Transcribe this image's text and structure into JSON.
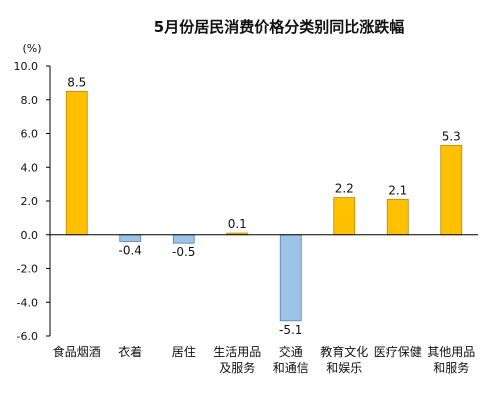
{
  "chart_data": {
    "type": "bar",
    "title": "5月份居民消费价格分类别同比涨跌幅",
    "unit": "(%)",
    "categories": [
      [
        "食品烟酒"
      ],
      [
        "衣着"
      ],
      [
        "居住"
      ],
      [
        "生活用品",
        "及服务"
      ],
      [
        "交通",
        "和通信"
      ],
      [
        "教育文化",
        "和娱乐"
      ],
      [
        "医疗保健"
      ],
      [
        "其他用品",
        "和服务"
      ]
    ],
    "values": [
      8.5,
      -0.4,
      -0.5,
      0.1,
      -5.1,
      2.2,
      2.1,
      5.3
    ],
    "value_labels": [
      "8.5",
      "-0.4",
      "-0.5",
      "0.1",
      "-5.1",
      "2.2",
      "2.1",
      "5.3"
    ],
    "yticks": [
      "10.0",
      "8.0",
      "6.0",
      "4.0",
      "2.0",
      "0.0",
      "-2.0",
      "-4.0",
      "-6.0"
    ],
    "ylim": [
      -6,
      10
    ],
    "grid": false,
    "colors": {
      "positive": "#FFC000",
      "positive_stroke": "#B8860B",
      "negative": "#9DC3E6",
      "negative_stroke": "#5B7FA6",
      "axis": "#000000"
    }
  }
}
